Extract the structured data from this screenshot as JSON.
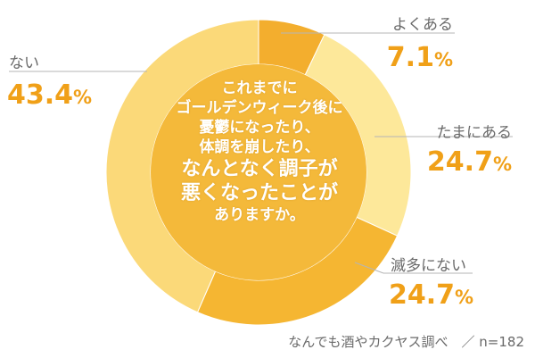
{
  "chart_data": {
    "type": "pie",
    "style": "donut",
    "categories": [
      "よくある",
      "たまにある",
      "滅多にない",
      "ない"
    ],
    "values": [
      7.1,
      24.7,
      24.7,
      43.4
    ],
    "value_labels": [
      {
        "num": "7.1",
        "unit": "%"
      },
      {
        "num": "24.7",
        "unit": "%"
      },
      {
        "num": "24.7",
        "unit": "%"
      },
      {
        "num": "43.4",
        "unit": "%"
      }
    ],
    "colors": [
      "#f3ae2e",
      "#fde89a",
      "#f5b632",
      "#fbd979"
    ],
    "inner_color": "#f4b93a"
  },
  "center_text": {
    "lines": [
      "これまでに",
      "ゴールデンウィーク後に",
      "憂鬱になったり、",
      "体調を崩したり、",
      "なんとなく調子が",
      "悪くなったことが",
      "ありますか。"
    ]
  },
  "footer": {
    "source": "なんでも酒やカクヤス調べ　／ n=182"
  },
  "colors": {
    "accent": "#f0a018",
    "label_text": "#6a6a6a",
    "leader_line": "#b5b5b5"
  }
}
